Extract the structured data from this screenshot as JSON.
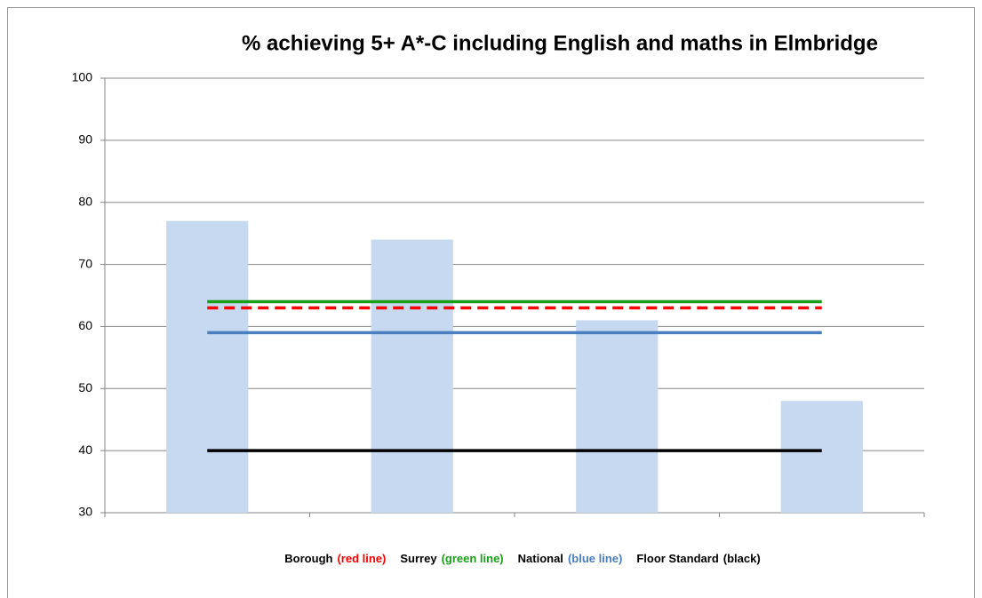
{
  "chart_data": {
    "type": "bar",
    "title": "% achieving 5+ A*-C including English and maths in Elmbridge",
    "categories": [
      null,
      null,
      null,
      null
    ],
    "values": [
      77,
      74,
      61,
      48
    ],
    "color": "#c6d9f1",
    "ylim": [
      30,
      100
    ],
    "yticks": [
      30,
      40,
      50,
      60,
      70,
      80,
      90,
      100
    ],
    "grid": true,
    "lines": [
      {
        "name": "Borough",
        "note": "(red line)",
        "value": 63,
        "color": "#ff0000",
        "dashed": true
      },
      {
        "name": "Surrey",
        "note": "(green line)",
        "value": 64,
        "color": "#1a9e1a",
        "dashed": false
      },
      {
        "name": "National",
        "note": "(blue line)",
        "value": 59,
        "color": "#4a7ebf",
        "dashed": false
      },
      {
        "name": "Floor Standard",
        "note": "(black)",
        "value": 40,
        "color": "#000000",
        "dashed": false
      }
    ]
  }
}
